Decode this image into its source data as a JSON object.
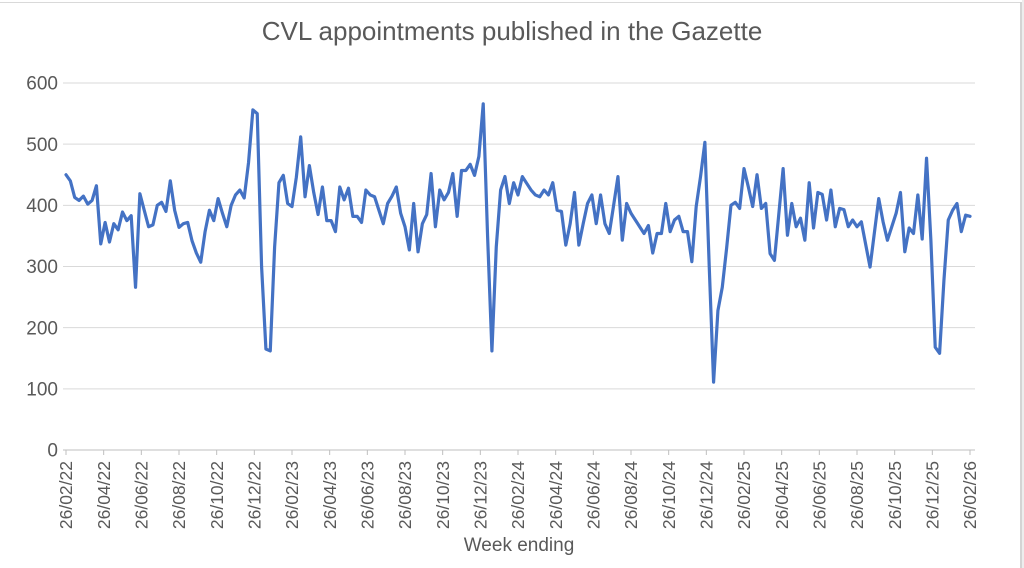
{
  "chart_data": {
    "type": "line",
    "title": "CVL appointments published in the Gazette",
    "xlabel": "Week ending",
    "ylabel": "",
    "ylim": [
      0,
      600
    ],
    "y_ticks": [
      0,
      100,
      200,
      300,
      400,
      500,
      600
    ],
    "grid": "horizontal",
    "legend": "none",
    "x_tick_label_rotation": -90,
    "x_tick_labels": [
      "26/02/22",
      "26/04/22",
      "26/06/22",
      "26/08/22",
      "26/10/22",
      "26/12/22",
      "26/02/23",
      "26/04/23",
      "26/06/23",
      "26/08/23",
      "26/10/23",
      "26/12/23",
      "26/02/24",
      "26/04/24",
      "26/06/24",
      "26/08/24",
      "26/10/24",
      "26/12/24",
      "26/02/25",
      "26/04/25",
      "26/06/25",
      "26/08/25",
      "26/10/25",
      "26/12/25",
      "26/02/26"
    ],
    "series": [
      {
        "color": "#4472C4",
        "values": [
          450,
          440,
          413,
          408,
          415,
          402,
          408,
          432,
          337,
          372,
          340,
          370,
          360,
          389,
          375,
          383,
          266,
          419,
          392,
          365,
          368,
          400,
          405,
          390,
          440,
          392,
          364,
          370,
          372,
          342,
          322,
          307,
          357,
          392,
          375,
          411,
          387,
          365,
          400,
          417,
          425,
          412,
          470,
          556,
          550,
          300,
          165,
          162,
          332,
          437,
          449,
          403,
          398,
          446,
          512,
          414,
          465,
          421,
          385,
          430,
          375,
          375,
          357,
          430,
          409,
          428,
          382,
          382,
          372,
          425,
          417,
          414,
          392,
          370,
          403,
          415,
          430,
          387,
          365,
          327,
          403,
          324,
          370,
          385,
          452,
          365,
          425,
          409,
          421,
          452,
          382,
          457,
          457,
          467,
          449,
          480,
          566,
          350,
          162,
          332,
          425,
          447,
          403,
          437,
          417,
          447,
          436,
          425,
          417,
          414,
          425,
          417,
          437,
          392,
          390,
          335,
          370,
          421,
          335,
          370,
          403,
          417,
          370,
          417,
          370,
          354,
          400,
          447,
          343,
          403,
          387,
          376,
          365,
          354,
          367,
          322,
          354,
          354,
          403,
          357,
          376,
          382,
          357,
          357,
          308,
          398,
          447,
          503,
          300,
          111,
          228,
          266,
          330,
          400,
          405,
          395,
          460,
          430,
          398,
          450,
          395,
          403,
          321,
          310,
          385,
          460,
          351,
          403,
          365,
          379,
          343,
          437,
          363,
          421,
          418,
          376,
          425,
          365,
          395,
          393,
          365,
          376,
          365,
          373,
          336,
          299,
          355,
          411,
          373,
          343,
          365,
          387,
          421,
          324,
          363,
          354,
          417,
          345,
          477,
          343,
          168,
          158,
          277,
          376,
          392,
          403,
          357,
          384,
          382
        ]
      }
    ]
  },
  "colors": {
    "series_line": "#4472C4",
    "title_text": "#595959",
    "tick_text": "#595959",
    "gridline": "#D9D9D9",
    "axis_line": "#BFBFBF",
    "background": "#FFFFFF"
  }
}
